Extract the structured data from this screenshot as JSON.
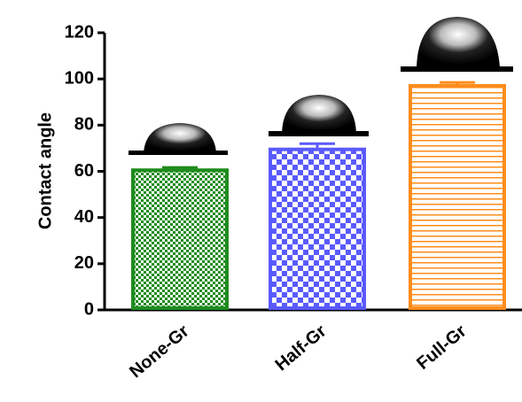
{
  "chart_data": {
    "type": "bar",
    "y_label": "Contact angle",
    "categories": [
      "None-Gr",
      "Half-Gr",
      "Full-Gr"
    ],
    "values": [
      60.5,
      69.5,
      97
    ],
    "errors": [
      1.2,
      2.5,
      1.5
    ],
    "colors": [
      "#1f8c1f",
      "#5a5aff",
      "#ff8c1a"
    ],
    "ylim": [
      0,
      120
    ],
    "yticks": [
      0,
      20,
      40,
      60,
      80,
      100,
      120
    ]
  }
}
